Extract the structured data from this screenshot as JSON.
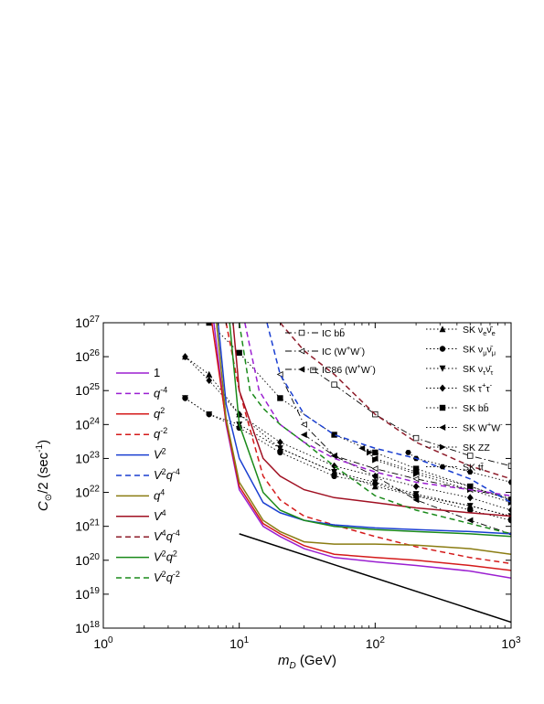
{
  "chart_data": {
    "type": "line",
    "title": "",
    "xlabel": "m_D (GeV)",
    "ylabel": "C_⊙/2 (sec⁻¹)",
    "xscale": "log",
    "yscale": "log",
    "xlim": [
      1,
      1000
    ],
    "ylim": [
      1e+18,
      1e+27
    ],
    "grid": false,
    "x_ticks": [
      {
        "base": "10",
        "exp": "0",
        "value": 1
      },
      {
        "base": "10",
        "exp": "1",
        "value": 10
      },
      {
        "base": "10",
        "exp": "2",
        "value": 100
      },
      {
        "base": "10",
        "exp": "3",
        "value": 1000
      }
    ],
    "y_ticks": [
      {
        "base": "10",
        "exp": "18",
        "value": 1e+18
      },
      {
        "base": "10",
        "exp": "19",
        "value": 1e+19
      },
      {
        "base": "10",
        "exp": "20",
        "value": 1e+20
      },
      {
        "base": "10",
        "exp": "21",
        "value": 1e+21
      },
      {
        "base": "10",
        "exp": "22",
        "value": 1e+22
      },
      {
        "base": "10",
        "exp": "23",
        "value": 1e+23
      },
      {
        "base": "10",
        "exp": "24",
        "value": 1e+24
      },
      {
        "base": "10",
        "exp": "25",
        "value": 1e+25
      },
      {
        "base": "10",
        "exp": "26",
        "value": 1e+26
      },
      {
        "base": "10",
        "exp": "27",
        "value": 1e+27
      }
    ],
    "model_series": [
      {
        "name": "1",
        "base": "1",
        "sup": "",
        "color": "#9b1fd1",
        "dash": "solid",
        "x": [
          6.5,
          8,
          10,
          15,
          20,
          30,
          50,
          100,
          200,
          500,
          1000
        ],
        "y": [
          1e+27,
          1e+24,
          1.2e+22,
          1e+21,
          5e+20,
          2.2e+20,
          1.2e+20,
          9e+19,
          7e+19,
          4.8e+19,
          3e+19
        ]
      },
      {
        "name": "q^-4",
        "base": "q",
        "sup": "-4",
        "color": "#9b1fd1",
        "dash": "dashed",
        "x": [
          11,
          14,
          20,
          30,
          50,
          100,
          200,
          500,
          1000
        ],
        "y": [
          1e+27,
          1e+25,
          1e+24,
          3e+23,
          1e+23,
          4e+22,
          2e+22,
          1.2e+22,
          8e+21
        ]
      },
      {
        "name": "q^2",
        "base": "q",
        "sup": "2",
        "color": "#d41a1a",
        "dash": "solid",
        "x": [
          6.3,
          8,
          10,
          15,
          20,
          30,
          50,
          100,
          200,
          500,
          1000
        ],
        "y": [
          1e+27,
          1.2e+24,
          1.5e+22,
          1.2e+21,
          6e+20,
          2.7e+20,
          1.5e+20,
          1.2e+20,
          1e+20,
          7e+19,
          5e+19
        ]
      },
      {
        "name": "q^-2",
        "base": "q",
        "sup": "-2",
        "color": "#d41a1a",
        "dash": "dashed",
        "x": [
          8,
          10,
          15,
          20,
          30,
          50,
          100,
          200,
          500,
          1000
        ],
        "y": [
          1e+27,
          1e+25,
          3e+22,
          6e+21,
          2e+21,
          1.1e+21,
          5e+20,
          2.5e+20,
          1.2e+20,
          8e+19
        ]
      },
      {
        "name": "V^2",
        "base": "V",
        "sup": "2",
        "color": "#1a3fd1",
        "dash": "solid",
        "x": [
          7,
          8,
          10,
          15,
          20,
          30,
          50,
          100,
          200,
          500,
          1000
        ],
        "y": [
          1e+27,
          4e+24,
          1e+23,
          5e+21,
          2.5e+21,
          1.5e+21,
          1.1e+21,
          9e+20,
          8e+20,
          7e+20,
          6e+20
        ]
      },
      {
        "name": "V^2q^-4",
        "base": "V",
        "sup": "2",
        "base2": "q",
        "sup2": "-4",
        "color": "#1a3fd1",
        "dash": "dashed",
        "x": [
          16,
          20,
          30,
          50,
          100,
          200,
          500,
          1000
        ],
        "y": [
          1e+27,
          3e+25,
          2e+24,
          5e+23,
          2e+23,
          1e+23,
          2.5e+22,
          5e+21
        ]
      },
      {
        "name": "q^4",
        "base": "q",
        "sup": "4",
        "color": "#8a7c12",
        "dash": "solid",
        "x": [
          6.8,
          8,
          10,
          15,
          20,
          30,
          50,
          100,
          200,
          500,
          1000
        ],
        "y": [
          1e+27,
          1.5e+24,
          2e+22,
          1.5e+21,
          7e+20,
          3.5e+20,
          3e+20,
          3e+20,
          2.8e+20,
          2.2e+20,
          1.5e+20
        ]
      },
      {
        "name": "V^4",
        "base": "V",
        "sup": "4",
        "color": "#a01022",
        "dash": "solid",
        "x": [
          9,
          10,
          15,
          20,
          30,
          50,
          100,
          200,
          500,
          1000
        ],
        "y": [
          1e+27,
          1e+25,
          1e+23,
          3e+22,
          1.2e+22,
          7e+21,
          5e+21,
          3.5e+21,
          2.5e+21,
          2e+21
        ]
      },
      {
        "name": "V^4q^-4",
        "base": "V",
        "sup": "4",
        "base2": "q",
        "sup2": "-4",
        "color": "#8e1c2a",
        "dash": "dashed",
        "x": [
          20,
          30,
          50,
          100,
          200,
          500,
          1000
        ],
        "y": [
          1e+27,
          1.5e+26,
          3e+25,
          2e+24,
          3e+23,
          6e+22,
          2.5e+22
        ]
      },
      {
        "name": "V^2q^2",
        "base": "V",
        "sup": "2",
        "base2": "q",
        "sup2": "2",
        "color": "#1a8a1a",
        "dash": "solid",
        "x": [
          8.5,
          10,
          15,
          20,
          30,
          50,
          100,
          200,
          500,
          1000
        ],
        "y": [
          1e+27,
          1e+24,
          1e+22,
          3e+21,
          1.5e+21,
          1e+21,
          8e+20,
          7e+20,
          6e+20,
          5e+20
        ]
      },
      {
        "name": "V^2q^-2",
        "base": "V",
        "sup": "2",
        "base2": "q",
        "sup2": "-2",
        "color": "#1a8a1a",
        "dash": "dashed",
        "x": [
          10,
          12,
          15,
          20,
          30,
          50,
          100,
          200,
          500,
          1000
        ],
        "y": [
          1e+27,
          1e+25,
          3e+24,
          1e+24,
          3e+23,
          6e+22,
          8e+21,
          3e+21,
          1.2e+21,
          6e+20
        ]
      },
      {
        "name": "black line",
        "base": "",
        "sup": "",
        "color": "#000000",
        "dash": "solid",
        "x": [
          10,
          1000
        ],
        "y": [
          6e+20,
          1.5e+18
        ]
      }
    ],
    "experiment_series": [
      {
        "name": "IC bb̄",
        "label": "IC b",
        "bar": "b",
        "sup": "",
        "sub": "",
        "group": "left",
        "marker": "open-square",
        "dash": "dashdot",
        "x": [
          35,
          50,
          100,
          200,
          500,
          1000
        ],
        "y": [
          4e+25,
          1.5e+25,
          2e+24,
          4e+23,
          1.2e+23,
          6e+22
        ]
      },
      {
        "name": "IC (W+W-)",
        "label": "IC (W",
        "sup": "+",
        "label2": "W",
        "sup2": "-",
        "label3": ")",
        "group": "left",
        "marker": "open-triangle-left",
        "dash": "dashdot",
        "x": [
          20,
          30,
          50,
          100,
          200,
          500,
          1000
        ],
        "y": [
          3e+25,
          1e+24,
          1.2e+23,
          5e+22,
          2.5e+22,
          1.2e+22,
          7e+21
        ]
      },
      {
        "name": "IC86 (W+W-)",
        "label": "IC86 (W",
        "sup": "+",
        "label2": "W",
        "sup2": "-",
        "label3": ")",
        "group": "left",
        "marker": "filled-triangle-left",
        "dash": "dashdot",
        "x": [
          30,
          50,
          100,
          200,
          500,
          1000
        ],
        "y": [
          5e+23,
          1.2e+23,
          3e+22,
          6e+21,
          1.5e+21,
          6e+20
        ]
      },
      {
        "name": "SK νe ν̄e",
        "label": "SK ν",
        "group": "right",
        "marker": "filled-triangle-up",
        "dash": "dotted",
        "x": [
          4,
          6,
          10,
          20,
          50,
          100,
          200,
          500,
          1000
        ],
        "y": [
          1e+26,
          3e+25,
          2e+24,
          2e+23,
          4e+22,
          1.5e+22,
          8e+21,
          4e+21,
          2e+21
        ]
      },
      {
        "name": "SK νμ ν̄μ",
        "label": "SK ν",
        "group": "right",
        "marker": "filled-circle",
        "dash": "dotted",
        "x": [
          4,
          6,
          10,
          20,
          50,
          100,
          200,
          500,
          1000
        ],
        "y": [
          6e+24,
          2e+24,
          8e+23,
          1.5e+23,
          3e+22,
          1.8e+22,
          8e+21,
          3e+21,
          1.5e+21
        ]
      },
      {
        "name": "SK ντ ν̄τ",
        "label": "SK ν",
        "group": "right",
        "marker": "filled-triangle-down",
        "dash": "dotted",
        "x": [
          4,
          6,
          10,
          20,
          50,
          100,
          200,
          500,
          1000
        ],
        "y": [
          6e+24,
          2e+24,
          1e+24,
          2e+23,
          4e+22,
          2e+22,
          9e+21,
          4e+21,
          2e+21
        ]
      },
      {
        "name": "SK τ+τ-",
        "label": "SK τ",
        "group": "right",
        "marker": "filled-diamond",
        "dash": "dotted",
        "x": [
          4,
          6,
          10,
          20,
          50,
          100,
          200,
          500,
          1000
        ],
        "y": [
          1e+26,
          2e+25,
          2e+24,
          3e+23,
          6e+22,
          3e+22,
          1.5e+22,
          7e+21,
          3e+21
        ]
      },
      {
        "name": "SK bb̄",
        "label": "SK b",
        "group": "right",
        "marker": "filled-square",
        "dash": "dotted",
        "x": [
          6,
          10,
          20,
          50,
          100,
          200,
          500,
          1000
        ],
        "y": [
          1e+27,
          1.3e+26,
          6e+24,
          5e+23,
          1.5e+23,
          5e+22,
          1.5e+22,
          6e+21
        ]
      },
      {
        "name": "SK W+W-",
        "label": "SK W",
        "group": "right",
        "marker": "filled-triangle-left",
        "dash": "dotted",
        "x": [
          80,
          100,
          200,
          500,
          1000
        ],
        "y": [
          2e+23,
          1e+23,
          4e+22,
          1.5e+22,
          6e+21
        ]
      },
      {
        "name": "SK ZZ",
        "label": "SK ZZ",
        "group": "right",
        "marker": "filled-triangle-right",
        "dash": "dotted",
        "x": [
          91,
          100,
          200,
          500,
          1000
        ],
        "y": [
          1.5e+23,
          9e+22,
          3.5e+22,
          1.2e+22,
          5e+21
        ]
      },
      {
        "name": "SK tt̄",
        "label": "SK t",
        "group": "right",
        "marker": "filled-hexagon",
        "dash": "dotted",
        "x": [
          175,
          200,
          500,
          1000
        ],
        "y": [
          1.5e+23,
          1e+23,
          4e+22,
          2e+22
        ]
      }
    ]
  }
}
